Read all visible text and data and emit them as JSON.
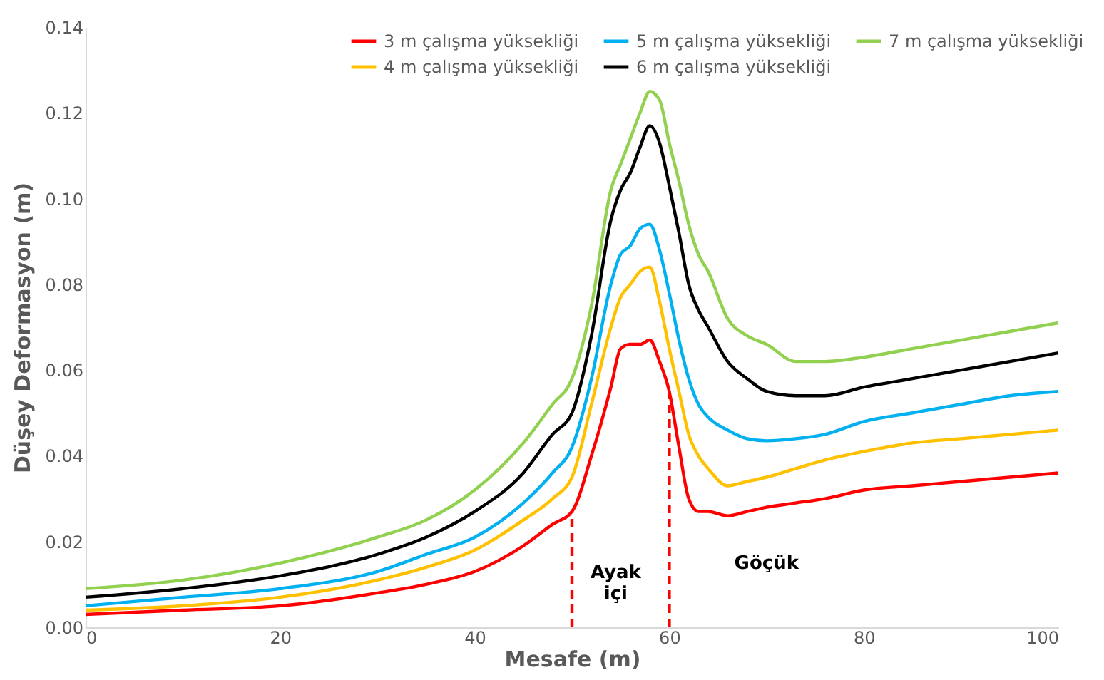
{
  "chart_data": {
    "type": "line",
    "xlabel": "Mesafe (m)",
    "ylabel": "Düşey Deformasyon (m)",
    "x": [
      0,
      10,
      20,
      30,
      35,
      40,
      45,
      48,
      50,
      52,
      54,
      55,
      56,
      57,
      58,
      59,
      60,
      61,
      62,
      63,
      64,
      66,
      68,
      70,
      73,
      76,
      80,
      85,
      90,
      95,
      100
    ],
    "series": [
      {
        "name": "3 m çalışma yüksekliği",
        "color": "#ff0000",
        "values": [
          0.003,
          0.004,
          0.005,
          0.008,
          0.01,
          0.013,
          0.019,
          0.024,
          0.027,
          0.04,
          0.056,
          0.065,
          0.066,
          0.066,
          0.067,
          0.062,
          0.055,
          0.042,
          0.03,
          0.027,
          0.027,
          0.026,
          0.027,
          0.028,
          0.029,
          0.03,
          0.032,
          0.033,
          0.034,
          0.035,
          0.036
        ]
      },
      {
        "name": "4 m çalışma yüksekliği",
        "color": "#ffc000",
        "values": [
          0.004,
          0.005,
          0.007,
          0.011,
          0.014,
          0.018,
          0.025,
          0.03,
          0.035,
          0.052,
          0.07,
          0.077,
          0.08,
          0.083,
          0.084,
          0.076,
          0.065,
          0.055,
          0.045,
          0.04,
          0.037,
          0.033,
          0.034,
          0.035,
          0.037,
          0.039,
          0.041,
          0.043,
          0.044,
          0.045,
          0.046
        ]
      },
      {
        "name": "5 m çalışma yüksekliği",
        "color": "#00b0f0",
        "values": [
          0.005,
          0.007,
          0.009,
          0.013,
          0.017,
          0.021,
          0.029,
          0.036,
          0.042,
          0.058,
          0.08,
          0.087,
          0.089,
          0.093,
          0.094,
          0.088,
          0.078,
          0.067,
          0.058,
          0.052,
          0.049,
          0.046,
          0.044,
          0.0435,
          0.044,
          0.045,
          0.048,
          0.05,
          0.052,
          0.054,
          0.055
        ]
      },
      {
        "name": "6 m çalışma yüksekliği",
        "color": "#000000",
        "values": [
          0.007,
          0.009,
          0.012,
          0.017,
          0.021,
          0.027,
          0.036,
          0.045,
          0.05,
          0.068,
          0.095,
          0.102,
          0.106,
          0.112,
          0.117,
          0.113,
          0.103,
          0.092,
          0.08,
          0.074,
          0.07,
          0.062,
          0.058,
          0.055,
          0.054,
          0.054,
          0.056,
          0.058,
          0.06,
          0.062,
          0.064
        ]
      },
      {
        "name": "7 m çalışma yüksekliği",
        "color": "#92d050",
        "values": [
          0.009,
          0.011,
          0.015,
          0.021,
          0.025,
          0.032,
          0.043,
          0.052,
          0.058,
          0.075,
          0.102,
          0.108,
          0.114,
          0.12,
          0.125,
          0.123,
          0.113,
          0.104,
          0.094,
          0.087,
          0.083,
          0.072,
          0.068,
          0.066,
          0.062,
          0.062,
          0.063,
          0.065,
          0.067,
          0.069,
          0.071
        ]
      }
    ],
    "ref_lines": [
      {
        "axis": "x",
        "value": 50,
        "color": "#ff0000",
        "line_style": "dashed"
      },
      {
        "axis": "x",
        "value": 60,
        "color": "#ff0000",
        "line_style": "dashed"
      }
    ],
    "xlim": [
      0,
      100
    ],
    "xticks": [
      0,
      20,
      40,
      60,
      80,
      100
    ],
    "ylim": [
      0,
      0.14
    ],
    "yticks": [
      {
        "value": 0,
        "label": "0.00"
      },
      {
        "value": 0.02,
        "label": "0.02"
      },
      {
        "value": 0.04,
        "label": "0.04"
      },
      {
        "value": 0.06,
        "label": "0.06"
      },
      {
        "value": 0.08,
        "label": "0.08"
      },
      {
        "value": 0.1,
        "label": "0.10"
      },
      {
        "value": 0.12,
        "label": "0.12"
      },
      {
        "value": 0.14,
        "label": "0.14"
      }
    ],
    "annotations": [
      "Ayak içi",
      "Göçük"
    ],
    "legend": "top",
    "grid": false,
    "marker": "none",
    "line_style": "solid"
  }
}
